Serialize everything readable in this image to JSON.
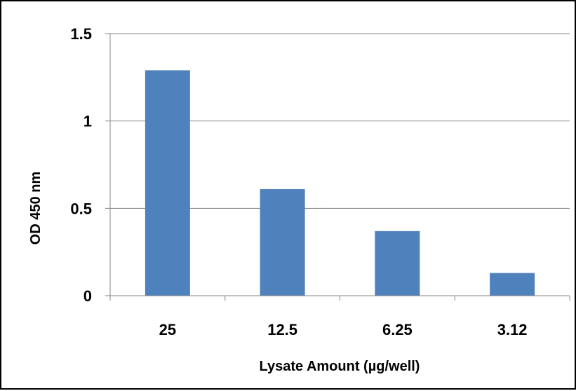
{
  "chart_data": {
    "type": "bar",
    "title": "",
    "xlabel": "Lysate Amount (µg/well)",
    "ylabel": "OD 450 nm",
    "categories": [
      "25",
      "12.5",
      "6.25",
      "3.12"
    ],
    "values": [
      1.29,
      0.61,
      0.37,
      0.13
    ],
    "ylim": [
      0,
      1.5
    ],
    "yticks": [
      "0",
      "0.5",
      "1",
      "1.5"
    ],
    "ytick_values": [
      0,
      0.5,
      1,
      1.5
    ],
    "grid": true,
    "legend": "none",
    "bar_color": "#4F81BD",
    "grid_color": "#868686"
  }
}
